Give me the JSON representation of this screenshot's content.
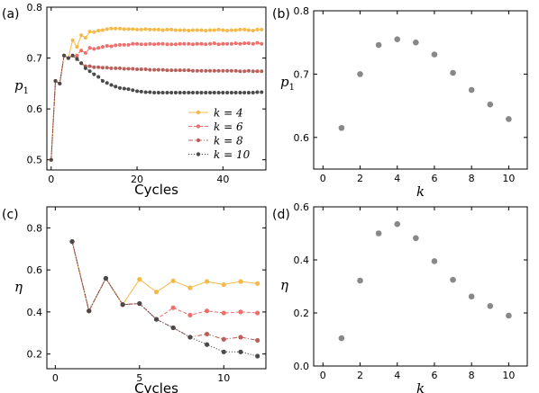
{
  "chart_data": [
    {
      "panel": "(a)",
      "type": "line",
      "xlabel": "Cycles",
      "ylabel": "p",
      "ylabel_sub": "1",
      "xlim": [
        -1,
        50
      ],
      "ylim": [
        0.48,
        0.8
      ],
      "x_ticks": [
        0,
        20,
        40
      ],
      "y_ticks": [
        0.5,
        0.6,
        0.7,
        0.8
      ],
      "y_ticklabels": [
        "0.5",
        "0.6",
        "0.7",
        "0.8"
      ],
      "grid": false,
      "legend_position": "lower-right",
      "x": [
        0,
        1,
        2,
        3,
        4,
        5,
        6,
        7,
        8,
        9,
        10,
        11,
        12,
        13,
        14,
        15,
        16,
        17,
        18,
        19,
        20,
        21,
        22,
        23,
        24,
        25,
        26,
        27,
        28,
        29,
        30,
        31,
        32,
        33,
        34,
        35,
        36,
        37,
        38,
        39,
        40,
        41,
        42,
        43,
        44,
        45,
        46,
        47,
        48,
        49
      ],
      "series": [
        {
          "name": "k = 4",
          "color": "#f5b947",
          "style": "solid",
          "marker": "circle",
          "values": [
            0.5,
            0.655,
            0.65,
            0.705,
            0.7,
            0.735,
            0.722,
            0.745,
            0.74,
            0.752,
            0.751,
            0.754,
            0.755,
            0.757,
            0.758,
            0.758,
            0.758,
            0.757,
            0.757,
            0.757,
            0.756,
            0.756,
            0.757,
            0.756,
            0.756,
            0.756,
            0.755,
            0.756,
            0.756,
            0.755,
            0.755,
            0.755,
            0.754,
            0.755,
            0.755,
            0.755,
            0.754,
            0.755,
            0.755,
            0.756,
            0.755,
            0.754,
            0.755,
            0.755,
            0.756,
            0.756,
            0.755,
            0.754,
            0.756,
            0.756
          ]
        },
        {
          "name": "k = 6",
          "color": "#ef6f6c",
          "style": "dashed",
          "marker": "circle",
          "values": [
            0.5,
            0.655,
            0.65,
            0.705,
            0.7,
            0.705,
            0.705,
            0.715,
            0.71,
            0.72,
            0.718,
            0.72,
            0.722,
            0.724,
            0.723,
            0.725,
            0.726,
            0.726,
            0.726,
            0.728,
            0.728,
            0.727,
            0.727,
            0.728,
            0.727,
            0.728,
            0.728,
            0.727,
            0.727,
            0.727,
            0.728,
            0.728,
            0.728,
            0.727,
            0.728,
            0.728,
            0.727,
            0.728,
            0.729,
            0.727,
            0.728,
            0.728,
            0.728,
            0.729,
            0.728,
            0.729,
            0.729,
            0.728,
            0.73,
            0.728
          ]
        },
        {
          "name": "k = 8",
          "color": "#b9605a",
          "style": "dashdot",
          "marker": "circle",
          "values": [
            0.5,
            0.655,
            0.65,
            0.705,
            0.7,
            0.705,
            0.7,
            0.69,
            0.684,
            0.684,
            0.682,
            0.682,
            0.681,
            0.681,
            0.68,
            0.68,
            0.68,
            0.679,
            0.679,
            0.679,
            0.678,
            0.678,
            0.678,
            0.677,
            0.677,
            0.677,
            0.677,
            0.676,
            0.676,
            0.676,
            0.676,
            0.676,
            0.676,
            0.675,
            0.675,
            0.675,
            0.675,
            0.675,
            0.675,
            0.675,
            0.675,
            0.675,
            0.675,
            0.675,
            0.674,
            0.674,
            0.675,
            0.674,
            0.674,
            0.674
          ]
        },
        {
          "name": "k = 10",
          "color": "#4a4a4a",
          "style": "dotted",
          "marker": "circle",
          "values": [
            0.5,
            0.655,
            0.65,
            0.705,
            0.7,
            0.705,
            0.698,
            0.69,
            0.68,
            0.674,
            0.668,
            0.663,
            0.655,
            0.651,
            0.647,
            0.644,
            0.641,
            0.64,
            0.639,
            0.637,
            0.635,
            0.634,
            0.633,
            0.633,
            0.632,
            0.632,
            0.632,
            0.632,
            0.632,
            0.632,
            0.632,
            0.632,
            0.632,
            0.632,
            0.632,
            0.632,
            0.632,
            0.632,
            0.632,
            0.632,
            0.632,
            0.632,
            0.632,
            0.632,
            0.632,
            0.632,
            0.632,
            0.632,
            0.633,
            0.633
          ]
        }
      ]
    },
    {
      "panel": "(b)",
      "type": "scatter",
      "xlabel": "k",
      "ylabel": "p",
      "ylabel_sub": "1",
      "xlim": [
        -0.5,
        11
      ],
      "ylim": [
        0.55,
        0.8
      ],
      "x_ticks": [
        0,
        2,
        4,
        6,
        8,
        10
      ],
      "y_ticks": [
        0.6,
        0.7,
        0.8
      ],
      "y_ticklabels": [
        "0.6",
        "0.7",
        "0.8"
      ],
      "grid": false,
      "color": "#888888",
      "x": [
        1,
        2,
        3,
        4,
        5,
        6,
        7,
        8,
        9,
        10
      ],
      "values": [
        0.615,
        0.7,
        0.746,
        0.755,
        0.75,
        0.731,
        0.702,
        0.675,
        0.652,
        0.629
      ]
    },
    {
      "panel": "(c)",
      "type": "line",
      "xlabel": "Cycles",
      "ylabel": "η",
      "xlim": [
        -0.5,
        12.5
      ],
      "ylim": [
        0.13,
        0.9
      ],
      "x_ticks": [
        0,
        5,
        10
      ],
      "y_ticks": [
        0.2,
        0.4,
        0.6,
        0.8
      ],
      "y_ticklabels": [
        "0.2",
        "0.4",
        "0.6",
        "0.8"
      ],
      "grid": false,
      "x": [
        1,
        2,
        3,
        4,
        5,
        6,
        7,
        8,
        9,
        10,
        11,
        12
      ],
      "series": [
        {
          "color": "#f5b947",
          "style": "solid",
          "marker": "circle",
          "values": [
            0.735,
            0.405,
            0.56,
            0.435,
            0.555,
            0.495,
            0.548,
            0.515,
            0.545,
            0.53,
            0.545,
            0.535
          ]
        },
        {
          "color": "#ef6f6c",
          "style": "dashed",
          "marker": "circle",
          "values": [
            0.735,
            0.405,
            0.56,
            0.435,
            0.44,
            0.365,
            0.42,
            0.385,
            0.405,
            0.395,
            0.4,
            0.395
          ]
        },
        {
          "color": "#b9605a",
          "style": "dashdot",
          "marker": "circle",
          "values": [
            0.735,
            0.405,
            0.56,
            0.435,
            0.44,
            0.365,
            0.325,
            0.28,
            0.295,
            0.27,
            0.28,
            0.265
          ]
        },
        {
          "color": "#4a4a4a",
          "style": "dotted",
          "marker": "circle",
          "values": [
            0.735,
            0.405,
            0.56,
            0.435,
            0.44,
            0.365,
            0.325,
            0.28,
            0.245,
            0.21,
            0.21,
            0.19
          ]
        }
      ]
    },
    {
      "panel": "(d)",
      "type": "scatter",
      "xlabel": "k",
      "ylabel": "η",
      "xlim": [
        -0.5,
        11
      ],
      "ylim": [
        0.0,
        0.6
      ],
      "x_ticks": [
        0,
        2,
        4,
        6,
        8,
        10
      ],
      "y_ticks": [
        0.0,
        0.2,
        0.4,
        0.6
      ],
      "y_ticklabels": [
        "0.0",
        "0.2",
        "0.4",
        "0.6"
      ],
      "grid": false,
      "color": "#888888",
      "x": [
        1,
        2,
        3,
        4,
        5,
        6,
        7,
        8,
        9,
        10
      ],
      "values": [
        0.105,
        0.322,
        0.5,
        0.535,
        0.482,
        0.395,
        0.325,
        0.262,
        0.226,
        0.19
      ]
    }
  ]
}
